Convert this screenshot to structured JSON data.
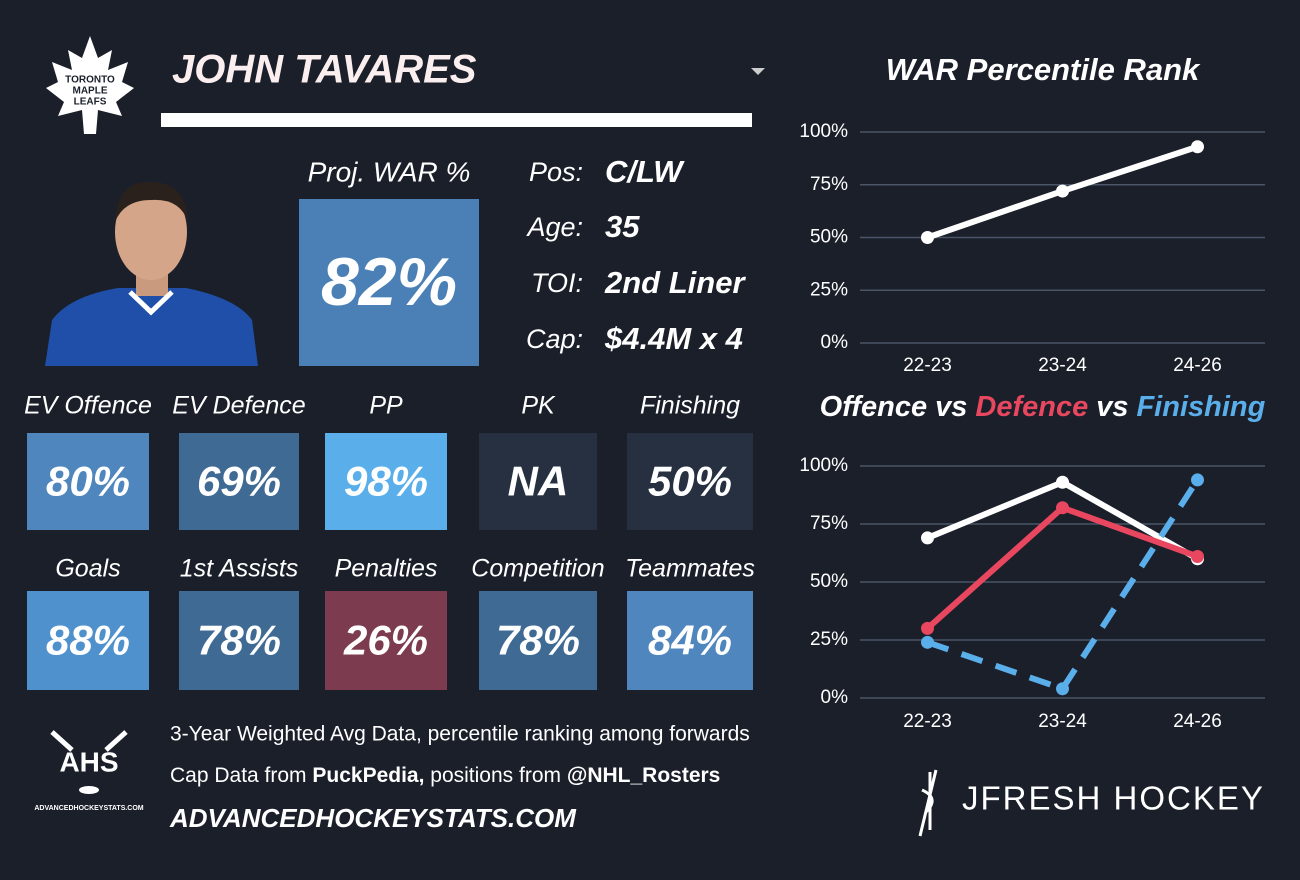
{
  "header": {
    "team_logo_lines": [
      "TORONTO",
      "MAPLE",
      "LEAFS"
    ],
    "player_name": "JOHN TAVARES"
  },
  "projection": {
    "label": "Proj. WAR %",
    "value": "82%",
    "color": "#4a80b5"
  },
  "info": [
    {
      "label": "Pos:",
      "value": "C/LW"
    },
    {
      "label": "Age:",
      "value": "35"
    },
    {
      "label": "TOI:",
      "value": "2nd Liner"
    },
    {
      "label": "Cap:",
      "value": "$4.4M x 4"
    }
  ],
  "tiles": [
    {
      "label": "EV Offence",
      "value": "80%",
      "color": "#4f86bd"
    },
    {
      "label": "EV Defence",
      "value": "69%",
      "color": "#3f6a94"
    },
    {
      "label": "PP",
      "value": "98%",
      "color": "#5aaeea"
    },
    {
      "label": "PK",
      "value": "NA",
      "color": "#263040"
    },
    {
      "label": "Finishing",
      "value": "50%",
      "color": "#263040"
    },
    {
      "label": "Goals",
      "value": "88%",
      "color": "#4f91cc"
    },
    {
      "label": "1st Assists",
      "value": "78%",
      "color": "#3f6a94"
    },
    {
      "label": "Penalties",
      "value": "26%",
      "color": "#7d3b50"
    },
    {
      "label": "Competition",
      "value": "78%",
      "color": "#3f6a94"
    },
    {
      "label": "Teammates",
      "value": "84%",
      "color": "#4f86bd"
    }
  ],
  "footer": {
    "logo_text": "AHS",
    "logo_caption": "ADVANCEDHOCKEYSTATS.COM",
    "line1": "3-Year Weighted Avg Data, percentile ranking among forwards",
    "line2": [
      {
        "text": "Cap Data from ",
        "bold": false
      },
      {
        "text": "PuckPedia,",
        "bold": true
      },
      {
        "text": " positions from ",
        "bold": false
      },
      {
        "text": "@NHL_Rosters",
        "bold": true
      }
    ],
    "website": "ADVANCEDHOCKEYSTATS.COM",
    "brand": "JFRESH HOCKEY"
  },
  "chart_data": [
    {
      "type": "line",
      "title": "WAR Percentile Rank",
      "categories": [
        "22-23",
        "23-24",
        "24-26"
      ],
      "series": [
        {
          "color": "#ffffff",
          "values": [
            50,
            72,
            93
          ]
        }
      ],
      "ylim": [
        0,
        100
      ],
      "yticks": [
        {
          "value": 0,
          "label": "0%"
        },
        {
          "value": 25,
          "label": "25%"
        },
        {
          "value": 50,
          "label": "50%"
        },
        {
          "value": 75,
          "label": "75%"
        },
        {
          "value": 100,
          "label": "100%"
        }
      ],
      "grid": true
    },
    {
      "type": "line",
      "title_separator": "vs",
      "categories": [
        "22-23",
        "23-24",
        "24-26"
      ],
      "series": [
        {
          "name": "Offence",
          "color": "#ffffff",
          "values": [
            69,
            93,
            60
          ]
        },
        {
          "name": "Defence",
          "color": "#e8475f",
          "values": [
            30,
            82,
            61
          ]
        },
        {
          "name": "Finishing",
          "color": "#5aaeea",
          "values": [
            24,
            4,
            94
          ],
          "dashed": true
        }
      ],
      "ylim": [
        0,
        100
      ],
      "yticks": [
        {
          "value": 0,
          "label": "0%"
        },
        {
          "value": 25,
          "label": "25%"
        },
        {
          "value": 50,
          "label": "50%"
        },
        {
          "value": 75,
          "label": "75%"
        },
        {
          "value": 100,
          "label": "100%"
        }
      ],
      "grid": true
    }
  ]
}
